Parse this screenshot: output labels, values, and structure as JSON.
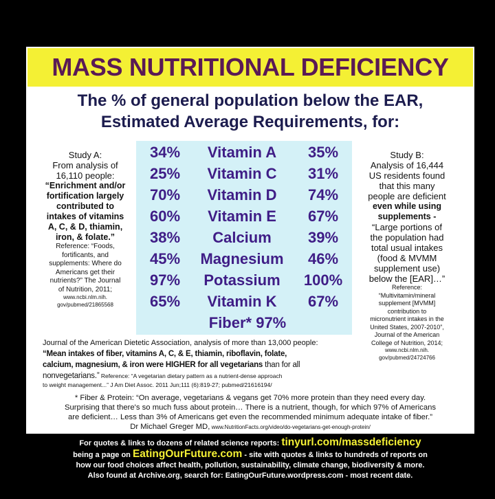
{
  "title": "MASS NUTRITIONAL DEFICIENCY",
  "subtitle": [
    "The % of general population below the EAR,",
    "Estimated Average Requirements, for:"
  ],
  "table": {
    "rows": [
      [
        "34%",
        "Vitamin A",
        "35%"
      ],
      [
        "25%",
        "Vitamin C",
        "31%"
      ],
      [
        "70%",
        "Vitamin D",
        "74%"
      ],
      [
        "60%",
        "Vitamin E",
        "67%"
      ],
      [
        "38%",
        "Calcium",
        "39%"
      ],
      [
        "45%",
        "Magnesium",
        "46%"
      ],
      [
        "97%",
        "Potassium",
        "100%"
      ],
      [
        "65%",
        "Vitamin K",
        "67%"
      ]
    ],
    "fiber": "Fiber* 97%"
  },
  "study_a": [
    "Study A:",
    "From analysis of",
    "16,110 people:",
    "“Enrichment and/or",
    "fortification largely",
    "contributed to",
    "intakes of vitamins",
    "A, C, & D, thiamin,",
    "iron, & folate.”",
    "Reference: “Foods,",
    "fortificants, and",
    "supplements: Where do",
    "Americans get their",
    "nutrients?” The Journal",
    "of Nutrition, 2011;",
    "www.ncbi.nlm.nih.",
    "gov/pubmed/21865568"
  ],
  "study_b": [
    "Study B:",
    "Analysis of 16,444",
    "US residents found",
    "that this many",
    "people are deficient",
    "even while using",
    "supplements -",
    "“Large portions of",
    "the population had",
    "total usual intakes",
    "(food & MVMM",
    "supplement use)",
    "below the [EAR]…”",
    "Reference:",
    "“Multivitamin/mineral",
    "supplement [MVMM]",
    "contribution to",
    "micronutrient intakes in the",
    "United States, 2007-2010”,",
    "Journal of the American",
    "College of Nutrition, 2014;",
    "www.ncbi.nlm.nih.",
    "gov/pubmed/24724766"
  ],
  "journal": [
    [
      "Journal of the American Dietetic Association, analysis of more than 13,000 people:"
    ],
    [
      "“Mean intakes of fiber, vitamins A, C, & E, thiamin, riboflavin, folate,"
    ],
    [
      "calcium, magnesium, & iron were HIGHER for all vegetarians",
      " than for all"
    ],
    [
      "nonvegetarians.”",
      " Reference: “A vegetarian dietary pattern as a nutrient-dense approach"
    ],
    [
      "to weight management...” J Am Diet Assoc. 2011 Jun;111 (6):819-27; pubmed/21616194/"
    ]
  ],
  "fiber_note": [
    [
      "* Fiber & Protein: “On average, vegetarians & vegans get 70% more protein than they need every day."
    ],
    [
      "Surprising that there's so much fuss about protein… There is a nutrient, though, for which 97% of Americans"
    ],
    [
      "are deficient… Less than 3% of Americans get even the recommended minimum adequate intake of fiber.”"
    ],
    [
      "Dr Michael Greger MD,",
      " www.NutritionFacts.org/video/do-vegetarians-get-enough-protein/"
    ]
  ],
  "footer": [
    [
      "For quotes & links to dozens of related science reports: ",
      "tinyurl.com/massdeficiency"
    ],
    [
      "being a page on ",
      "EatingOurFuture.com",
      " - site with quotes & links to hundreds of reports on"
    ],
    [
      "how our food choices affect health, pollution, sustainability, climate change, biodiversity & more."
    ],
    [
      "Also found at Archive.org, search for: EatingOurFuture.wordpress.com - most recent date."
    ]
  ]
}
